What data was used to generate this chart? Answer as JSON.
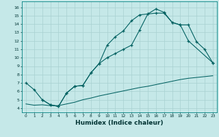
{
  "xlabel": "Humidex (Indice chaleur)",
  "background_color": "#c5e8e8",
  "grid_color": "#a8d0d0",
  "line_color": "#006060",
  "xlim": [
    -0.5,
    23.5
  ],
  "ylim": [
    3.5,
    16.5
  ],
  "line1_x": [
    0,
    1,
    2,
    3,
    4,
    5,
    6,
    7,
    8,
    9,
    10,
    11,
    12,
    13,
    14,
    15,
    16,
    17,
    18,
    19,
    20,
    23
  ],
  "line1_y": [
    7.0,
    6.2,
    5.0,
    4.4,
    4.2,
    5.8,
    6.6,
    6.7,
    8.2,
    9.3,
    11.5,
    12.5,
    13.2,
    14.4,
    15.1,
    15.2,
    15.8,
    15.4,
    14.2,
    13.9,
    12.0,
    9.4
  ],
  "line2_x": [
    2,
    3,
    4,
    5,
    6,
    7,
    8,
    9,
    10,
    11,
    12,
    13,
    14,
    15,
    16,
    17,
    18,
    19,
    20,
    21,
    22,
    23
  ],
  "line2_y": [
    5.0,
    4.4,
    4.2,
    5.8,
    6.6,
    6.7,
    8.2,
    9.3,
    10.0,
    10.5,
    11.0,
    11.5,
    13.3,
    15.2,
    15.3,
    15.3,
    14.2,
    13.9,
    13.9,
    11.9,
    11.0,
    9.4
  ],
  "line3_x": [
    0,
    1,
    2,
    3,
    4,
    5,
    6,
    7,
    8,
    9,
    10,
    11,
    12,
    13,
    14,
    15,
    16,
    17,
    18,
    19,
    20,
    21,
    22,
    23
  ],
  "line3_y": [
    4.5,
    4.35,
    4.4,
    4.3,
    4.3,
    4.5,
    4.7,
    5.0,
    5.2,
    5.45,
    5.65,
    5.85,
    6.05,
    6.25,
    6.45,
    6.6,
    6.8,
    7.0,
    7.2,
    7.4,
    7.55,
    7.65,
    7.75,
    7.85
  ]
}
